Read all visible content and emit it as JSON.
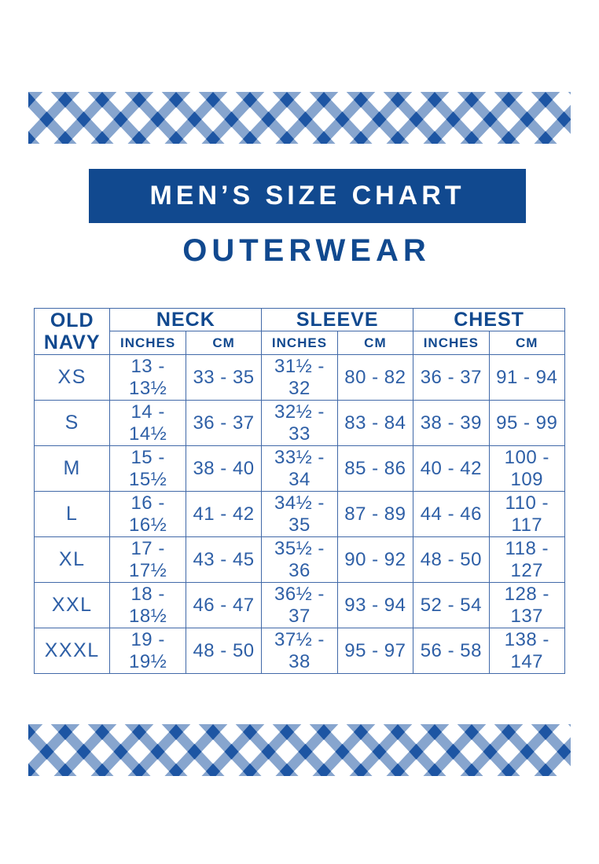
{
  "header": {
    "title": "MEN’S SIZE CHART",
    "subtitle": "OUTERWEAR"
  },
  "brand": {
    "line1": "OLD",
    "line2": "NAVY"
  },
  "colors": {
    "banner_background": "#11498F",
    "heading_text": "#11498F",
    "data_text": "#2E5FA6",
    "table_border": "#4169A8",
    "lattice_light_stripe": "#87A5CE",
    "lattice_dark_diamond": "#1D55A3",
    "banner_text": "#FFFFFF"
  },
  "table": {
    "groups": [
      "NECK",
      "SLEEVE",
      "CHEST"
    ],
    "subheaders": [
      "INCHES",
      "CM",
      "INCHES",
      "CM",
      "INCHES",
      "CM"
    ],
    "rows": [
      {
        "size": "XS",
        "values": [
          "13 - 13½",
          "33 - 35",
          "31½ - 32",
          "80 - 82",
          "36 - 37",
          "91 - 94"
        ]
      },
      {
        "size": "S",
        "values": [
          "14 - 14½",
          "36 - 37",
          "32½ - 33",
          "83 - 84",
          "38 - 39",
          "95 - 99"
        ]
      },
      {
        "size": "M",
        "values": [
          "15 - 15½",
          "38 - 40",
          "33½ - 34",
          "85 - 86",
          "40 - 42",
          "100 - 109"
        ]
      },
      {
        "size": "L",
        "values": [
          "16 - 16½",
          "41 - 42",
          "34½ - 35",
          "87 - 89",
          "44 - 46",
          "110 - 117"
        ]
      },
      {
        "size": "XL",
        "values": [
          "17 - 17½",
          "43 - 45",
          "35½ - 36",
          "90 - 92",
          "48 - 50",
          "118 - 127"
        ]
      },
      {
        "size": "XXL",
        "values": [
          "18 - 18½",
          "46 - 47",
          "36½ - 37",
          "93 - 94",
          "52 - 54",
          "128 - 137"
        ]
      },
      {
        "size": "XXXL",
        "values": [
          "19 - 19½",
          "48 - 50",
          "37½ - 38",
          "95 - 97",
          "56 - 58",
          "138 - 147"
        ]
      }
    ]
  }
}
